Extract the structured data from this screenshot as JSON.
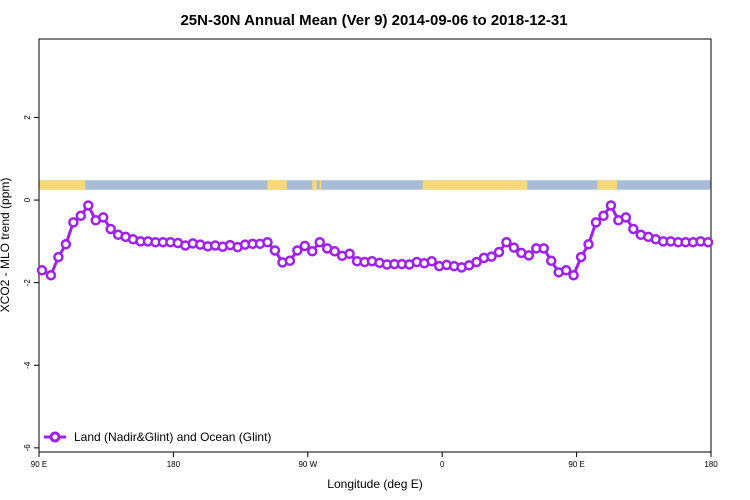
{
  "chart_data": {
    "type": "line",
    "title": "25N-30N Annual Mean (Ver 9)   2014-09-06 to 2018-12-31",
    "xlabel": "Longitude (deg E)",
    "ylabel": "XCO2 - MLO trend (ppm)",
    "x_axis": {
      "range_deg_east": [
        90,
        540
      ],
      "ticks": [
        {
          "value": 90,
          "label": "90 E"
        },
        {
          "value": 180,
          "label": "180"
        },
        {
          "value": 270,
          "label": "90 W"
        },
        {
          "value": 360,
          "label": "0"
        },
        {
          "value": 450,
          "label": "90 E"
        },
        {
          "value": 540,
          "label": "180"
        }
      ]
    },
    "y_axis": {
      "range": [
        -6.1,
        3.9
      ],
      "ticks": [
        -6,
        -4,
        -2,
        0,
        2
      ],
      "tick_labels_rotated": true
    },
    "grid": false,
    "legend": {
      "position": "bottom-left"
    },
    "colors": {
      "series": "#a020f0",
      "land": "#f8d878",
      "ocean": "#a8bcd8"
    },
    "land_ocean_band": {
      "y_range": [
        0.25,
        0.48
      ],
      "land_segments_deg_east": [
        [
          90,
          121
        ],
        [
          243,
          248
        ],
        [
          246,
          256
        ],
        [
          273,
          276
        ],
        [
          278,
          279
        ],
        [
          347,
          417
        ],
        [
          464,
          477
        ]
      ]
    },
    "series": [
      {
        "name": "Land (Nadir&Glint) and Ocean (Glint)",
        "x": [
          92,
          98,
          103,
          108,
          113,
          118,
          123,
          128,
          133,
          138,
          143,
          148,
          153,
          158,
          163,
          168,
          173,
          178,
          183,
          188,
          193,
          198,
          203,
          208,
          213,
          218,
          223,
          228,
          233,
          238,
          243,
          248,
          253,
          258,
          263,
          268,
          273,
          278,
          283,
          288,
          293,
          298,
          303,
          308,
          313,
          318,
          323,
          328,
          333,
          338,
          343,
          348,
          353,
          358,
          363,
          368,
          373,
          378,
          383,
          388,
          393,
          398,
          403,
          408,
          413,
          418,
          423,
          428,
          433,
          438,
          443,
          448,
          453,
          458,
          463,
          468,
          473,
          478,
          483,
          488,
          493,
          498,
          503,
          508,
          513,
          518,
          523,
          528,
          533,
          538
        ],
        "y": [
          -1.7,
          -1.82,
          -1.38,
          -1.07,
          -0.54,
          -0.38,
          -0.13,
          -0.49,
          -0.42,
          -0.7,
          -0.84,
          -0.89,
          -0.95,
          -1.0,
          -1.0,
          -1.02,
          -1.02,
          -1.02,
          -1.04,
          -1.1,
          -1.05,
          -1.08,
          -1.12,
          -1.1,
          -1.13,
          -1.09,
          -1.14,
          -1.08,
          -1.06,
          -1.06,
          -1.02,
          -1.22,
          -1.51,
          -1.47,
          -1.22,
          -1.11,
          -1.24,
          -1.02,
          -1.17,
          -1.24,
          -1.35,
          -1.3,
          -1.48,
          -1.5,
          -1.48,
          -1.52,
          -1.56,
          -1.55,
          -1.55,
          -1.56,
          -1.5,
          -1.53,
          -1.48,
          -1.6,
          -1.57,
          -1.6,
          -1.63,
          -1.58,
          -1.5,
          -1.4,
          -1.37,
          -1.26,
          -1.02,
          -1.15,
          -1.28,
          -1.34,
          -1.17,
          -1.17,
          -1.47,
          -1.75,
          -1.7,
          -1.82,
          -1.38,
          -1.07,
          -0.54,
          -0.38,
          -0.13,
          -0.49,
          -0.42,
          -0.7,
          -0.84,
          -0.89,
          -0.95,
          -1.0,
          -1.0,
          -1.02,
          -1.02,
          -1.02,
          -1.0,
          -1.02
        ]
      }
    ]
  }
}
